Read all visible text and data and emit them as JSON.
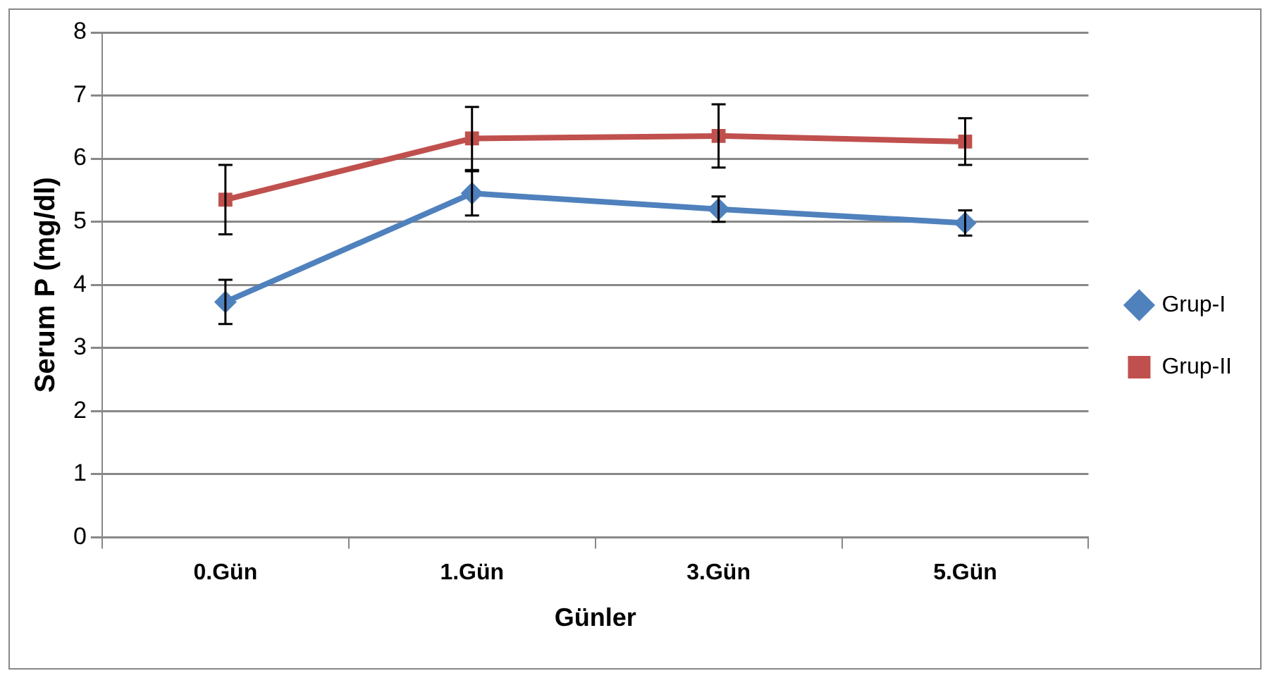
{
  "chart_data": {
    "type": "line",
    "xlabel": "Günler",
    "ylabel": "Serum P (mg/dl)",
    "categories": [
      "0.Gün",
      "1.Gün",
      "3.Gün",
      "5.Gün"
    ],
    "series": [
      {
        "name": "Grup-I",
        "color": "#4f81bd",
        "marker": "diamond",
        "values": [
          3.73,
          5.45,
          5.2,
          4.98
        ],
        "errors": [
          0.35,
          0.35,
          0.2,
          0.2
        ]
      },
      {
        "name": "Grup-II",
        "color": "#c0504d",
        "marker": "square",
        "values": [
          5.35,
          6.32,
          6.36,
          6.27
        ],
        "errors": [
          0.55,
          0.5,
          0.5,
          0.37
        ]
      }
    ],
    "ylim": [
      0,
      8
    ],
    "yticks": [
      0,
      1,
      2,
      3,
      4,
      5,
      6,
      7,
      8
    ],
    "grid": "y",
    "legend": "right"
  }
}
